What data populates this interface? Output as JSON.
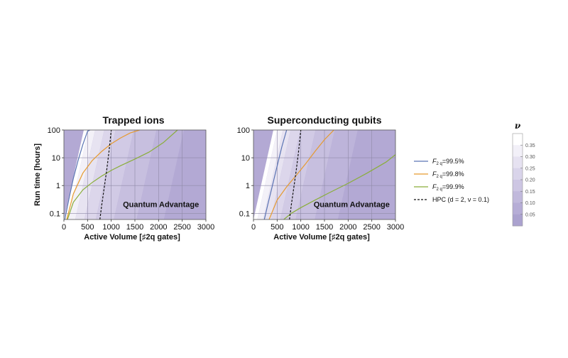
{
  "chart_data": [
    {
      "type": "line",
      "title": "Trapped ions",
      "xlabel": "Active Volume [♯2q gates]",
      "ylabel": "Run time [hours]",
      "xlim": [
        0,
        3000
      ],
      "ylim": [
        0.06,
        100
      ],
      "y_scale": "log",
      "x_ticks": [
        "0",
        "500",
        "1000",
        "1500",
        "2000",
        "2500",
        "3000"
      ],
      "y_ticks": [
        "0.1",
        "1",
        "10",
        "100"
      ],
      "annotation": "Quantum Advantage",
      "series": [
        {
          "name": "F2q=99.5%",
          "color": "#5a73b3",
          "x": [
            20,
            100,
            200,
            300,
            400,
            500,
            550
          ],
          "y": [
            0.06,
            0.3,
            1.8,
            8,
            30,
            90,
            100
          ]
        },
        {
          "name": "F2q=99.8%",
          "color": "#e69a2e",
          "x": [
            60,
            200,
            400,
            600,
            800,
            1000,
            1200,
            1400,
            1600
          ],
          "y": [
            0.06,
            0.5,
            2.8,
            8,
            17,
            32,
            52,
            78,
            100
          ]
        },
        {
          "name": "F2q=99.9%",
          "color": "#8aae3a",
          "x": [
            75,
            200,
            400,
            600,
            800,
            1000,
            1200,
            1500,
            1800,
            2100,
            2400
          ],
          "y": [
            0.06,
            0.25,
            0.7,
            1.3,
            2.2,
            3.5,
            5.2,
            9,
            16,
            35,
            100
          ]
        },
        {
          "name": "HPC (d = 2, ν = 0.1)",
          "color": "#111111",
          "dashed": true,
          "x": [
            760,
            800,
            850,
            900,
            950,
            1000
          ],
          "y": [
            0.06,
            0.2,
            0.8,
            3.2,
            15,
            100
          ]
        }
      ]
    },
    {
      "type": "line",
      "title": "Superconducting qubits",
      "xlabel": "Active Volume [♯2q gates]",
      "ylabel": "",
      "xlim": [
        0,
        3000
      ],
      "ylim": [
        0.06,
        100
      ],
      "y_scale": "log",
      "x_ticks": [
        "0",
        "500",
        "1000",
        "1500",
        "2000",
        "2500",
        "3000"
      ],
      "y_ticks": [
        "0.1",
        "1",
        "10",
        "100"
      ],
      "annotation": "Quantum Advantage",
      "series": [
        {
          "name": "F2q=99.5%",
          "color": "#5a73b3",
          "x": [
            230,
            300,
            400,
            500,
            600,
            700
          ],
          "y": [
            0.06,
            0.2,
            1,
            5,
            25,
            100
          ]
        },
        {
          "name": "F2q=99.8%",
          "color": "#e69a2e",
          "x": [
            330,
            500,
            700,
            900,
            1100,
            1300,
            1500,
            1700
          ],
          "y": [
            0.06,
            0.3,
            0.9,
            2.3,
            6,
            17,
            45,
            100
          ]
        },
        {
          "name": "F2q=99.9%",
          "color": "#8aae3a",
          "x": [
            640,
            800,
            1000,
            1300,
            1600,
            2000,
            2400,
            2800,
            3000
          ],
          "y": [
            0.06,
            0.1,
            0.16,
            0.3,
            0.55,
            1.2,
            2.8,
            7,
            13
          ]
        },
        {
          "name": "HPC (d = 2, ν = 0.1)",
          "color": "#111111",
          "dashed": true,
          "x": [
            760,
            800,
            850,
            900,
            950,
            1000
          ],
          "y": [
            0.06,
            0.2,
            0.8,
            3.2,
            15,
            100
          ]
        }
      ]
    }
  ],
  "legend": {
    "position": "right",
    "entries": [
      {
        "pre": "F",
        "sub": "2 q",
        "post": "=99.5%",
        "color": "#5a73b3",
        "dashed": false
      },
      {
        "pre": "F",
        "sub": "2 q",
        "post": "=99.8%",
        "color": "#e69a2e",
        "dashed": false
      },
      {
        "pre": "F",
        "sub": "2 q",
        "post": "=99.9%",
        "color": "#8aae3a",
        "dashed": false
      },
      {
        "pre": "HPC  (d = 2,  ν = 0.1)",
        "sub": "",
        "post": "",
        "color": "#111111",
        "dashed": true
      }
    ]
  },
  "colorbar": {
    "label": "ν",
    "ticks": [
      "0.35",
      "0.30",
      "0.25",
      "0.20",
      "0.15",
      "0.10",
      "0.05"
    ],
    "range": [
      0,
      0.4
    ],
    "colors": [
      "#ffffff",
      "#f2f0f8",
      "#e6e2f1",
      "#d9d4ea",
      "#cdc6e3",
      "#c1b9dc",
      "#b6add6",
      "#aba2cf"
    ]
  }
}
